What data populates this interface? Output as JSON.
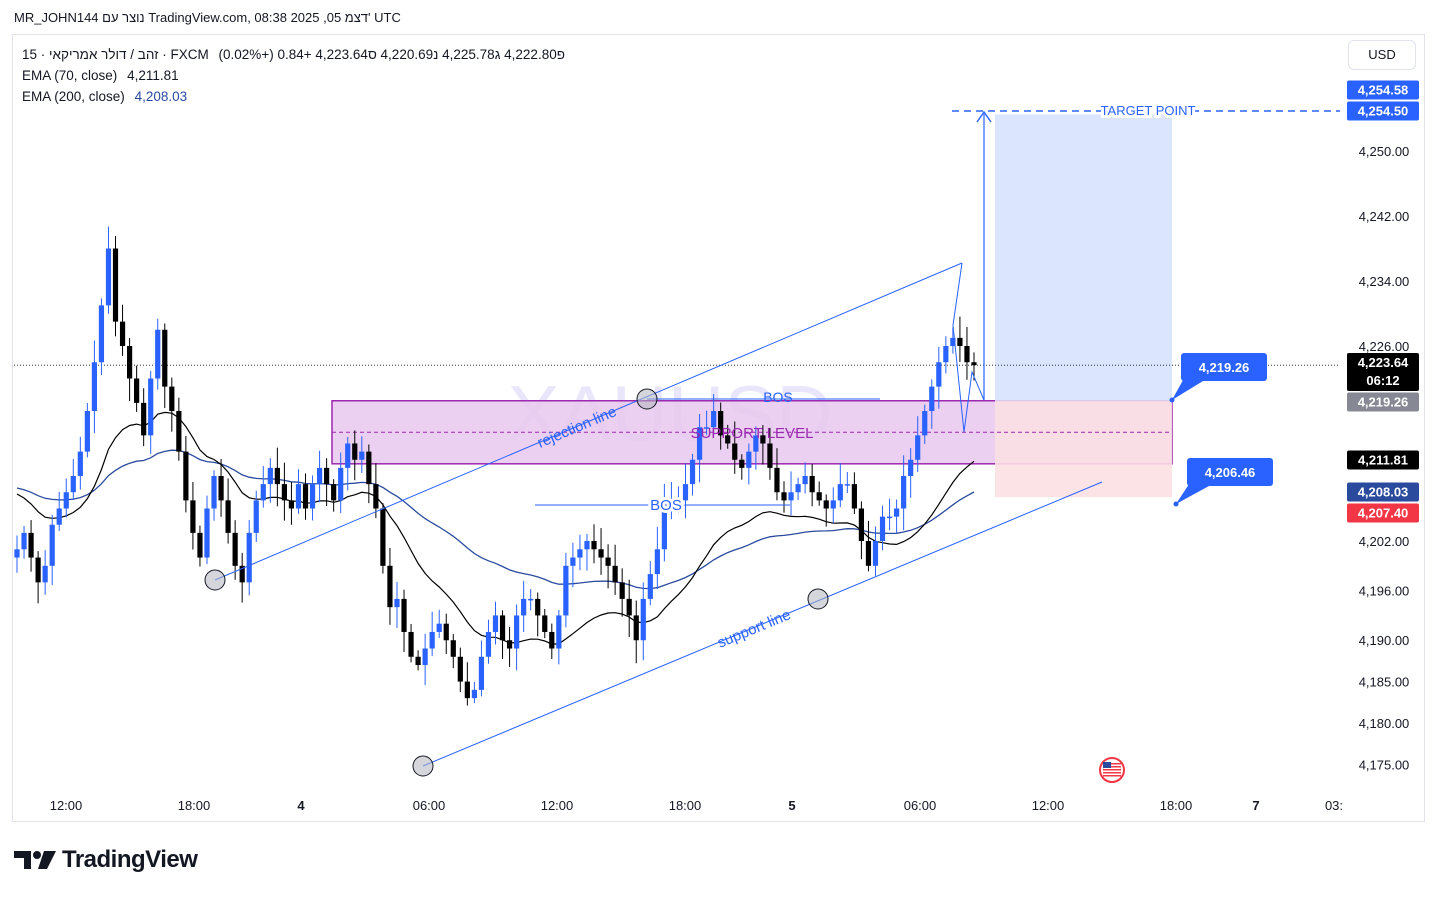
{
  "header": {
    "text": "MR_JOHN144 נוצר עם TradingView.com, 08:38 2025 ,05 דצמ' UTC"
  },
  "legend": {
    "symbol_line": "15 · זהב / דולר אמריקאי · FXCM",
    "ohlc": "פ4,222.80  ג4,225.78  נ4,220.69  ס4,223.64  +0.84 (+0.02%)",
    "ema70_label": "EMA (70, close)",
    "ema70_value": "4,211.81",
    "ema200_label": "EMA (200, close)",
    "ema200_value": "4,208.03"
  },
  "currency_button": "USD",
  "watermark": "XAUUSD",
  "annotations": {
    "target_point": "TARGET POINT",
    "support_level": "SUPPORT LEVEL",
    "bos_top": "BOS",
    "bos_bottom": "BOS",
    "rejection_line": "rejection line",
    "support_line": "support line",
    "callout_upper": "4,219.26",
    "callout_lower": "4,206.46"
  },
  "price_badges": [
    {
      "text": "4,254.58",
      "price": 4254.58,
      "bg": "#2962ff",
      "fg": "#ffffff"
    },
    {
      "text": "4,254.50",
      "price": 4254.5,
      "bg": "#2962ff",
      "fg": "#ffffff"
    },
    {
      "text": "4,223.64",
      "price": 4223.64,
      "bg": "#000000",
      "fg": "#ffffff",
      "sub": "06:12"
    },
    {
      "text": "4,219.26",
      "price": 4219.26,
      "bg": "#868993",
      "fg": "#ffffff"
    },
    {
      "text": "4,211.81",
      "price": 4211.81,
      "bg": "#000000",
      "fg": "#ffffff"
    },
    {
      "text": "4,208.03",
      "price": 4208.03,
      "bg": "#2a4a9e",
      "fg": "#ffffff"
    },
    {
      "text": "4,207.40",
      "price": 4207.4,
      "bg": "#f23645",
      "fg": "#ffffff"
    }
  ],
  "brand": {
    "logo_text": "TradingView"
  },
  "colors": {
    "bull": "#2962ff",
    "bear": "#000000",
    "ema70": "#000000",
    "ema200": "#2a4a9e",
    "zone_fill": "#e8c8ee",
    "zone_border": "#9c27b0",
    "target_fill": "#dbe5fd",
    "stop_fill": "#fbe0e3",
    "line": "#2962ff"
  },
  "chart_data": {
    "type": "candlestick",
    "title": "",
    "xlabel": "",
    "ylabel": "",
    "y_axis_ticks": [
      "4,250.00",
      "4,242.00",
      "4,234.00",
      "4,226.00",
      "4,202.00",
      "4,196.00",
      "4,190.00",
      "4,185.00",
      "4,180.00",
      "4,175.00"
    ],
    "x_axis_ticks": [
      "12:00",
      "18:00",
      "4",
      "06:00",
      "12:00",
      "18:00",
      "5",
      "06:00",
      "12:00",
      "18:00",
      "7",
      "03:"
    ],
    "ylim": [
      4171,
      4258
    ],
    "timeframe": "15",
    "grid": false,
    "last_price": 4223.64,
    "ema70_last": 4211.81,
    "ema200_last": 4208.03,
    "support_zone": [
      4211.5,
      4219.26
    ],
    "target_price": 4254.5,
    "entry_price": 4219.26,
    "stop_price": 4207.4,
    "closes": [
      4201,
      4203,
      4200,
      4197,
      4199,
      4204,
      4206,
      4208,
      4210,
      4213,
      4218,
      4224,
      4231,
      4238,
      4229,
      4226,
      4222,
      4219,
      4215,
      4222,
      4228,
      4221,
      4218,
      4213,
      4207,
      4203,
      4200,
      4206,
      4210,
      4207,
      4203,
      4199,
      4197,
      4203,
      4207,
      4209,
      4211,
      4209,
      4207,
      4206,
      4209,
      4206,
      4209,
      4211,
      4209,
      4207,
      4211,
      4214,
      4212,
      4213,
      4209,
      4206,
      4199,
      4194,
      4195,
      4191,
      4188,
      4187,
      4189,
      4191,
      4192,
      4190,
      4188,
      4185,
      4183,
      4184,
      4188,
      4191,
      4193,
      4190,
      4189,
      4193,
      4195,
      4195,
      4193,
      4191,
      4189,
      4193,
      4199,
      4200,
      4201,
      4202,
      4201,
      4200,
      4199,
      4197,
      4195,
      4193,
      4190,
      4195,
      4198,
      4201,
      4207,
      4207,
      4207,
      4209,
      4212,
      4216,
      4216,
      4218,
      4215,
      4214,
      4212,
      4211,
      4213,
      4215,
      4214,
      4211,
      4208,
      4207,
      4208,
      4209,
      4210,
      4208,
      4207,
      4206,
      4207,
      4209,
      4209,
      4206,
      4202,
      4199,
      4202,
      4205,
      4205,
      4206,
      4210,
      4212,
      4215,
      4218,
      4221,
      4224,
      4226,
      4227,
      4226,
      4224,
      4223.64
    ]
  }
}
